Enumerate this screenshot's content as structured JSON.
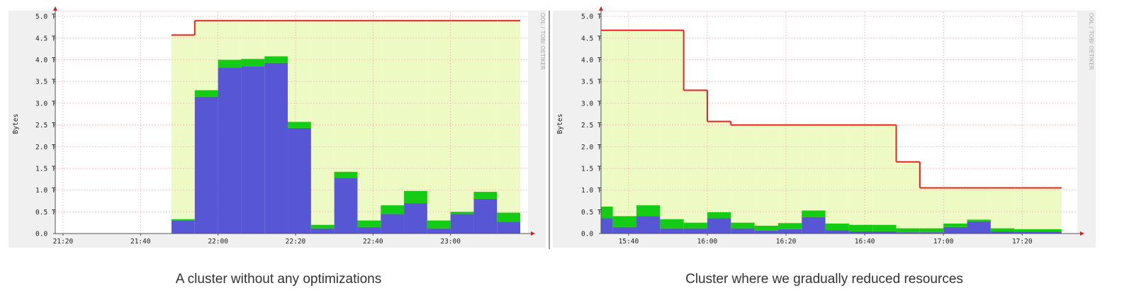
{
  "chart_data": [
    {
      "type": "step-area",
      "ylabel": "Bytes",
      "watermark": "OOL / TOBI OETIKER",
      "caption": "A cluster without any optimizations",
      "x": [
        1308,
        1314,
        1320,
        1326,
        1332,
        1338,
        1344,
        1350,
        1356,
        1362,
        1368,
        1374,
        1380,
        1386,
        1392
      ],
      "xlim": [
        1278,
        1400
      ],
      "xticks": [
        {
          "value": 1280,
          "label": "21:20"
        },
        {
          "value": 1300,
          "label": "21:40"
        },
        {
          "value": 1320,
          "label": "22:00"
        },
        {
          "value": 1340,
          "label": "22:20"
        },
        {
          "value": 1360,
          "label": "22:40"
        },
        {
          "value": 1380,
          "label": "23:00"
        }
      ],
      "ylim": [
        0,
        5.1
      ],
      "yticks": [
        {
          "value": 0,
          "label": "0.0"
        },
        {
          "value": 0.5,
          "label": "0.5 T"
        },
        {
          "value": 1,
          "label": "1.0 T"
        },
        {
          "value": 1.5,
          "label": "1.5 T"
        },
        {
          "value": 2,
          "label": "2.0 T"
        },
        {
          "value": 2.5,
          "label": "2.5 T"
        },
        {
          "value": 3,
          "label": "3.0 T"
        },
        {
          "value": 3.5,
          "label": "3.5 T"
        },
        {
          "value": 4,
          "label": "4.0 T"
        },
        {
          "value": 4.5,
          "label": "4.5 T"
        },
        {
          "value": 5,
          "label": "5.0 T"
        }
      ],
      "grid": true,
      "series": [
        {
          "color": "#5757d6",
          "stack": true,
          "values": [
            0.3,
            3.15,
            3.82,
            3.85,
            3.93,
            2.43,
            0.12,
            1.28,
            0.15,
            0.45,
            0.7,
            0.12,
            0.45,
            0.8,
            0.27
          ]
        },
        {
          "color": "#13cc13",
          "stack": true,
          "values": [
            0.03,
            0.15,
            0.18,
            0.17,
            0.15,
            0.14,
            0.08,
            0.14,
            0.15,
            0.2,
            0.28,
            0.18,
            0.05,
            0.16,
            0.21
          ]
        },
        {
          "color": "#e8221c",
          "fill": "#eefac4",
          "values": [
            4.57,
            4.9,
            4.9,
            4.9,
            4.9,
            4.9,
            4.9,
            4.9,
            4.9,
            4.9,
            4.9,
            4.9,
            4.9,
            4.9,
            4.9
          ]
        }
      ]
    },
    {
      "type": "step-area",
      "ylabel": "Bytes",
      "watermark": "OOL / TOBI OETIKER",
      "caption": "Cluster where we gradually reduced resources",
      "x": [
        933,
        936,
        942,
        948,
        954,
        960,
        966,
        972,
        978,
        984,
        990,
        996,
        1002,
        1008,
        1014,
        1020,
        1026,
        1032,
        1038,
        1044
      ],
      "xlim": [
        933,
        1054
      ],
      "xticks": [
        {
          "value": 940,
          "label": "15:40"
        },
        {
          "value": 960,
          "label": "16:00"
        },
        {
          "value": 980,
          "label": "16:20"
        },
        {
          "value": 1000,
          "label": "16:40"
        },
        {
          "value": 1020,
          "label": "17:00"
        },
        {
          "value": 1040,
          "label": "17:20"
        }
      ],
      "ylim": [
        0,
        5.1
      ],
      "yticks": [
        {
          "value": 0,
          "label": "0.0"
        },
        {
          "value": 0.5,
          "label": "0.5 T"
        },
        {
          "value": 1,
          "label": "1.0 T"
        },
        {
          "value": 1.5,
          "label": "1.5 T"
        },
        {
          "value": 2,
          "label": "2.0 T"
        },
        {
          "value": 2.5,
          "label": "2.5 T"
        },
        {
          "value": 3,
          "label": "3.0 T"
        },
        {
          "value": 3.5,
          "label": "3.5 T"
        },
        {
          "value": 4,
          "label": "4.0 T"
        },
        {
          "value": 4.5,
          "label": "4.5 T"
        },
        {
          "value": 5,
          "label": "5.0 T"
        }
      ],
      "grid": true,
      "series": [
        {
          "color": "#5757d6",
          "stack": true,
          "values": [
            0.35,
            0.15,
            0.4,
            0.12,
            0.12,
            0.35,
            0.12,
            0.07,
            0.1,
            0.38,
            0.08,
            0.05,
            0.05,
            0.03,
            0.03,
            0.15,
            0.28,
            0.05,
            0.04,
            0.04
          ]
        },
        {
          "color": "#13cc13",
          "stack": true,
          "values": [
            0.27,
            0.25,
            0.25,
            0.21,
            0.13,
            0.14,
            0.13,
            0.11,
            0.14,
            0.15,
            0.15,
            0.15,
            0.15,
            0.09,
            0.09,
            0.08,
            0.04,
            0.07,
            0.06,
            0.06
          ]
        },
        {
          "color": "#e8221c",
          "fill": "#eefac4",
          "values": [
            4.68,
            4.68,
            4.68,
            4.68,
            3.3,
            2.58,
            2.5,
            2.5,
            2.5,
            2.5,
            2.5,
            2.5,
            2.5,
            1.65,
            1.05,
            1.05,
            1.05,
            1.05,
            1.05,
            1.05
          ]
        }
      ]
    }
  ]
}
